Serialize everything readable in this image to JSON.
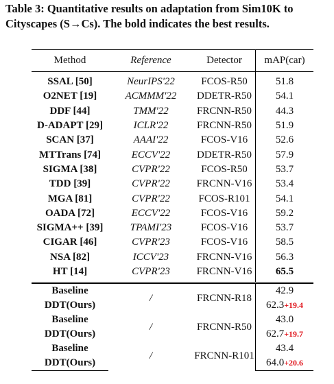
{
  "caption": "Table 3: Quantitative results on adaptation from Sim10K to Cityscapes (S→Cs). The bold indicates the best results.",
  "table": {
    "header": [
      "Method",
      "Reference",
      "Detector",
      "mAP(car)"
    ],
    "rows": [
      [
        "SSAL [50]",
        "NeurIPS'22",
        "FCOS-R50",
        "51.8"
      ],
      [
        "O2NET [19]",
        "ACMMM'22",
        "DDETR-R50",
        "54.1"
      ],
      [
        "DDF [44]",
        "TMM'22",
        "FRCNN-R50",
        "44.3"
      ],
      [
        "D-ADAPT [29]",
        "ICLR'22",
        "FRCNN-R50",
        "51.9"
      ],
      [
        "SCAN [37]",
        "AAAI'22",
        "FCOS-V16",
        "52.6"
      ],
      [
        "MTTrans [74]",
        "ECCV'22",
        "DDETR-R50",
        "57.9"
      ],
      [
        "SIGMA [38]",
        "CVPR'22",
        "FCOS-R50",
        "53.7"
      ],
      [
        "TDD [39]",
        "CVPR'22",
        "FRCNN-V16",
        "53.4"
      ],
      [
        "MGA [81]",
        "CVPR'22",
        "FCOS-R101",
        "54.1"
      ],
      [
        "OADA [72]",
        "ECCV'22",
        "FCOS-V16",
        "59.2"
      ],
      [
        "SIGMA++ [39]",
        "TPAMI'23",
        "FCOS-V16",
        "53.7"
      ],
      [
        "CIGAR [46]",
        "CVPR'23",
        "FCOS-V16",
        "58.5"
      ],
      [
        "NSA [82]",
        "ICCV'23",
        "FRCNN-V16",
        "56.3"
      ],
      [
        "HT [14]",
        "CVPR'23",
        "FRCNN-V16",
        "65.5"
      ]
    ],
    "groups": [
      {
        "reference": "/",
        "detector": "FRCNN-R18",
        "rows": [
          {
            "method": "Baseline",
            "map": "42.9"
          },
          {
            "method": "DDT(Ours)",
            "map": "62.3",
            "gain": "+19.4"
          }
        ]
      },
      {
        "reference": "/",
        "detector": "FRCNN-R50",
        "rows": [
          {
            "method": "Baseline",
            "map": "43.0"
          },
          {
            "method": "DDT(Ours)",
            "map": "62.7",
            "gain": "+19.7"
          }
        ]
      },
      {
        "reference": "/",
        "detector": "FRCNN-R101",
        "rows": [
          {
            "method": "Baseline",
            "map": "43.4"
          },
          {
            "method": "DDT(Ours)",
            "map": "64.0",
            "gain": "+20.6"
          }
        ]
      }
    ]
  }
}
